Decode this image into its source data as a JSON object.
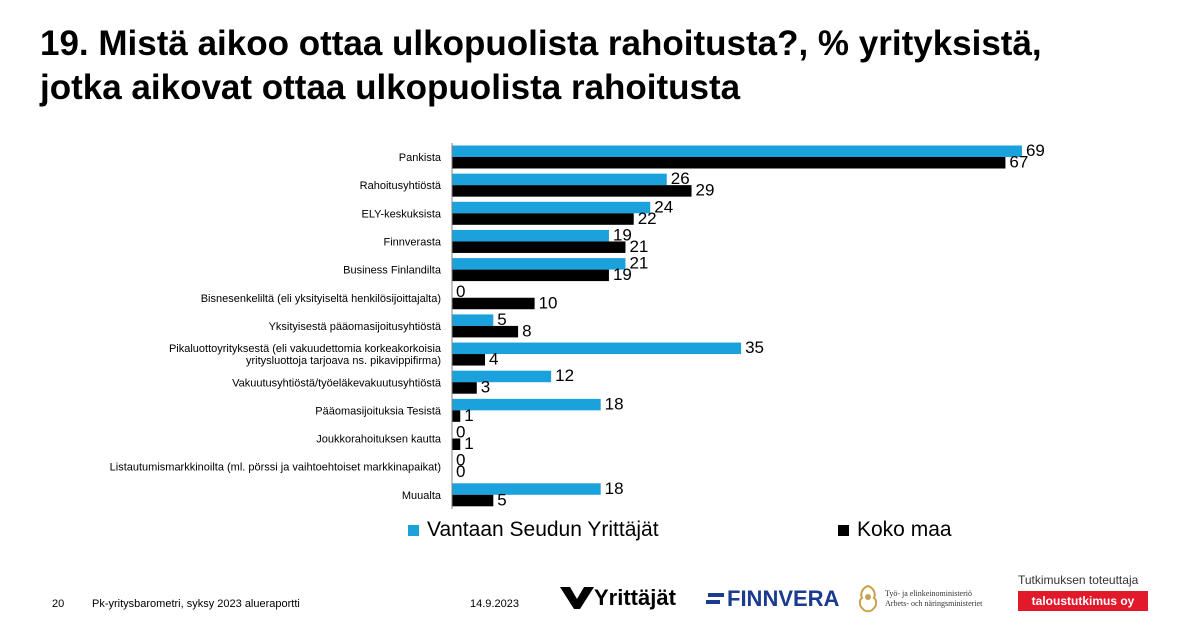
{
  "title_lines": [
    "19. Mistä aikoo ottaa ulkopuolista rahoitusta?, % yrityksistä,",
    "jotka aikovat ottaa ulkopuolista rahoitusta"
  ],
  "chart_data": {
    "type": "bar",
    "orientation": "horizontal",
    "categories": [
      [
        "Pankista"
      ],
      [
        "Rahoitusyhtiöstä"
      ],
      [
        "ELY-keskuksista"
      ],
      [
        "Finnverasta"
      ],
      [
        "Business Finlandilta"
      ],
      [
        "Bisnesenkeliltä (eli yksityiseltä henkilösijoittajalta)"
      ],
      [
        "Yksityisestä pääomasijoitusyhtiöstä"
      ],
      [
        "Pikaluottoyrityksestä (eli vakuudettomia korkeakorkoisia",
        "yritysluottoja tarjoava ns. pikavippifirma)"
      ],
      [
        "Vakuutusyhtiöstä/työeläkevakuutusyhtiöstä"
      ],
      [
        "Pääomasijoituksia Tesistä"
      ],
      [
        "Joukkorahoituksen kautta"
      ],
      [
        "Listautumismarkkinoilta (ml. pörssi ja vaihtoehtoiset markkinapaikat)"
      ],
      [
        "Muualta"
      ]
    ],
    "series": [
      {
        "name": "Vantaan Seudun Yrittäjät",
        "color": "#1ba1dc",
        "values": [
          69,
          26,
          24,
          19,
          21,
          0,
          5,
          35,
          12,
          18,
          0,
          0,
          18
        ]
      },
      {
        "name": "Koko maa",
        "color": "#000000",
        "values": [
          67,
          29,
          22,
          21,
          19,
          10,
          8,
          4,
          3,
          1,
          1,
          0,
          5
        ]
      }
    ],
    "xlim": [
      0,
      70
    ],
    "legend_position": "bottom",
    "grid": false
  },
  "footer": {
    "page_number": "20",
    "report_name": "Pk-yritysbarometri, syksy 2023 alueraportti",
    "date": "14.9.2023"
  },
  "logos": {
    "yrittajat": "Yrittäjät",
    "finnvera": "FINNVERA",
    "tem_line1": "Työ- ja elinkeinoministeriö",
    "tem_line2": "Arbets- och näringsministeriet",
    "toteuttaja_caption": "Tutkimuksen toteuttaja",
    "taloustutkimus": "taloustutkimus oy"
  }
}
